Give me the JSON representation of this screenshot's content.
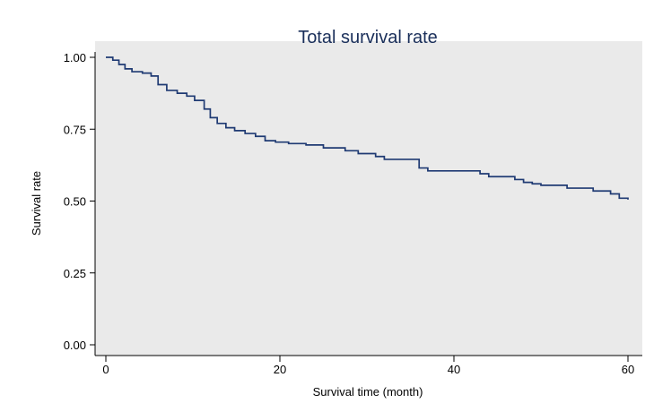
{
  "chart_data": {
    "type": "line",
    "title": "Total survival rate",
    "xlabel": "Survival time (month)",
    "ylabel": "Survival rate",
    "xlim": [
      0,
      60
    ],
    "ylim": [
      0,
      1
    ],
    "xticks": [
      0,
      20,
      40,
      60
    ],
    "xtick_labels": [
      "0",
      "20",
      "40",
      "60"
    ],
    "yticks": [
      0,
      0.25,
      0.5,
      0.75,
      1.0
    ],
    "ytick_labels": [
      "0.00",
      "0.25",
      "0.50",
      "0.75",
      "1.00"
    ],
    "grid": false,
    "step": true,
    "series": [
      {
        "x": [
          0,
          0.8,
          1.5,
          2.2,
          3.0,
          4.2,
          5.2,
          6.0,
          7.0,
          8.2,
          9.3,
          10.2,
          11.3,
          12.0,
          12.8,
          13.8,
          14.8,
          16.0,
          17.2,
          18.3,
          19.5,
          21.0,
          23.0,
          25.0,
          27.5,
          29.0,
          31.0,
          32.0,
          36.0,
          37.0,
          40.0,
          43.0,
          44.0,
          47.0,
          48.0,
          49.0,
          50.0,
          53.0,
          56.0,
          58.0,
          59.0,
          60.0
        ],
        "y": [
          1.0,
          0.99,
          0.975,
          0.96,
          0.95,
          0.945,
          0.935,
          0.905,
          0.885,
          0.875,
          0.865,
          0.85,
          0.82,
          0.79,
          0.77,
          0.755,
          0.745,
          0.735,
          0.725,
          0.71,
          0.705,
          0.7,
          0.695,
          0.685,
          0.675,
          0.665,
          0.655,
          0.645,
          0.615,
          0.605,
          0.605,
          0.595,
          0.585,
          0.575,
          0.565,
          0.56,
          0.555,
          0.545,
          0.535,
          0.525,
          0.51,
          0.505
        ]
      }
    ],
    "colors": {
      "line": "#1f3a73",
      "plot_bg": "#eaeaea",
      "outer_bg": "#ffffff",
      "title": "#1a2f5a",
      "axis": "#000000"
    }
  }
}
